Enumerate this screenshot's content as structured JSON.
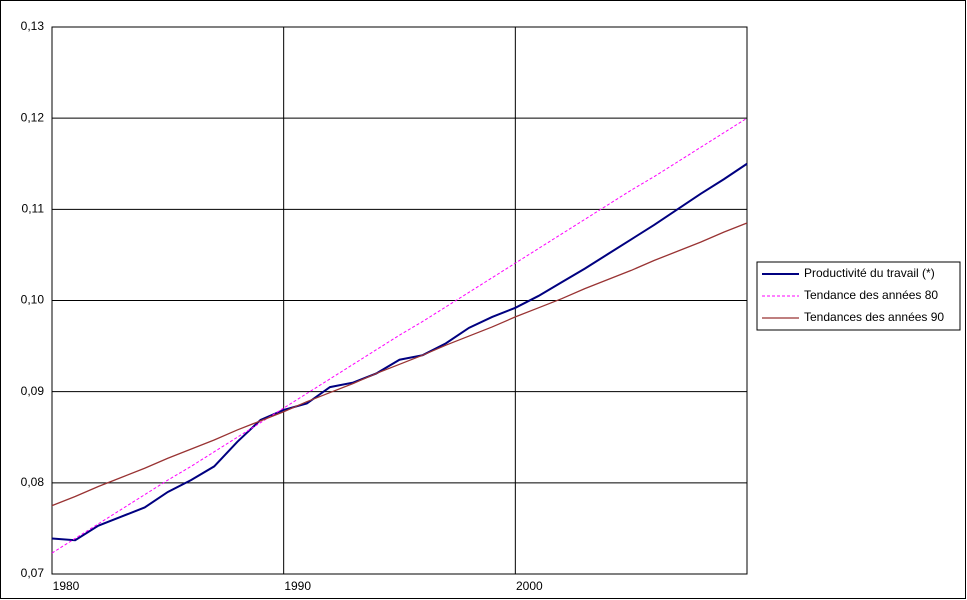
{
  "chart_data": {
    "type": "line",
    "x": [
      1980,
      1981,
      1982,
      1983,
      1984,
      1985,
      1986,
      1987,
      1988,
      1989,
      1990,
      1991,
      1992,
      1993,
      1994,
      1995,
      1996,
      1997,
      1998,
      1999,
      2000,
      2001,
      2002,
      2003,
      2004,
      2005,
      2006,
      2007,
      2008,
      2009,
      2010
    ],
    "series": [
      {
        "name": "Productivité du travail (*)",
        "color": "#000080",
        "style": "solid",
        "width": 2,
        "values": [
          0.0739,
          0.0737,
          0.0753,
          0.0763,
          0.0773,
          0.079,
          0.0803,
          0.0818,
          0.0845,
          0.0869,
          0.088,
          0.0887,
          0.0905,
          0.091,
          0.092,
          0.0935,
          0.094,
          0.0953,
          0.097,
          0.0982,
          0.0992,
          0.1005,
          0.102,
          0.1035,
          0.1051,
          0.1067,
          0.1083,
          0.11,
          0.1117,
          0.1133,
          0.115
        ]
      },
      {
        "name": "Tendance des années 80",
        "color": "#ff00ff",
        "style": "dashed",
        "width": 1,
        "values": [
          0.0723,
          0.0739,
          0.0755,
          0.0771,
          0.0787,
          0.0803,
          0.0818,
          0.0834,
          0.085,
          0.0866,
          0.0882,
          0.0898,
          0.0914,
          0.093,
          0.0946,
          0.0962,
          0.0977,
          0.0993,
          0.1009,
          0.1025,
          0.1041,
          0.1057,
          0.1073,
          0.1089,
          0.1105,
          0.1121,
          0.1136,
          0.1152,
          0.1168,
          0.1184,
          0.12
        ]
      },
      {
        "name": "Tendances des années 90",
        "color": "#993333",
        "style": "solid",
        "width": 1.3,
        "values": [
          0.0775,
          0.0785,
          0.0796,
          0.0806,
          0.0816,
          0.0827,
          0.0837,
          0.0847,
          0.0858,
          0.0868,
          0.0878,
          0.0889,
          0.0899,
          0.0909,
          0.092,
          0.093,
          0.094,
          0.0951,
          0.0961,
          0.0971,
          0.0982,
          0.0992,
          0.1002,
          0.1013,
          0.1023,
          0.1033,
          0.1044,
          0.1054,
          0.1064,
          0.1075,
          0.1085
        ]
      }
    ],
    "xlim": [
      1980,
      2010
    ],
    "xticks": [
      1980,
      1990,
      2000
    ],
    "ylim": [
      0.07,
      0.13
    ],
    "yticks": [
      {
        "value": 0.07,
        "label": "0,07"
      },
      {
        "value": 0.08,
        "label": "0,08"
      },
      {
        "value": 0.09,
        "label": "0,09"
      },
      {
        "value": 0.1,
        "label": "0,10"
      },
      {
        "value": 0.11,
        "label": "0,11"
      },
      {
        "value": 0.12,
        "label": "0,12"
      },
      {
        "value": 0.13,
        "label": "0,13"
      }
    ],
    "grid": true,
    "legend": "right"
  }
}
